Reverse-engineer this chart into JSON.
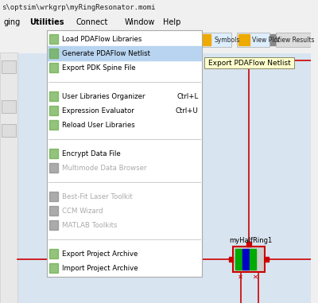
{
  "title_bar": "s\\optsim\\wrkgrp\\myRingResonator.momi",
  "menu_bar": [
    "ging",
    "Utilities",
    "Connect",
    "Window",
    "Help"
  ],
  "bg_color": "#f0f0f0",
  "canvas_bg": "#e8e8e8",
  "menu_bg": "#ffffff",
  "highlight_color": "#b8d4f0",
  "menu_items": [
    {
      "text": "Load PDAFlow Libraries",
      "icon": true,
      "shortcut": "",
      "enabled": true
    },
    {
      "text": "Generate PDAFlow Netlist",
      "icon": true,
      "shortcut": "",
      "enabled": true,
      "highlighted": true
    },
    {
      "text": "Export PDK Spine File",
      "icon": true,
      "shortcut": "",
      "enabled": true
    },
    {
      "text": "",
      "separator": true
    },
    {
      "text": "User Libraries Organizer",
      "icon": true,
      "shortcut": "Ctrl+L",
      "enabled": true
    },
    {
      "text": "Expression Evaluator",
      "icon": true,
      "shortcut": "Ctrl+U",
      "enabled": true
    },
    {
      "text": "Reload User Libraries",
      "icon": true,
      "shortcut": "",
      "enabled": true
    },
    {
      "text": "",
      "separator": true
    },
    {
      "text": "Encrypt Data File",
      "icon": true,
      "shortcut": "",
      "enabled": true
    },
    {
      "text": "Multimode Data Browser",
      "icon": true,
      "shortcut": "",
      "enabled": false
    },
    {
      "text": "",
      "separator": true
    },
    {
      "text": "Best-Fit Laser Toolkit",
      "icon": true,
      "shortcut": "",
      "enabled": false
    },
    {
      "text": "CCM Wizard",
      "icon": true,
      "shortcut": "",
      "enabled": false
    },
    {
      "text": "MATLAB Toolkits",
      "icon": true,
      "shortcut": "",
      "enabled": false
    },
    {
      "text": "",
      "separator": true
    },
    {
      "text": "Export Project Archive",
      "icon": true,
      "shortcut": "",
      "enabled": true
    },
    {
      "text": "Import Project Archive",
      "icon": true,
      "shortcut": "",
      "enabled": true
    }
  ],
  "tooltip_text": "Export PDAFlow Netlist",
  "component_label": "myHalfRing1",
  "wire_color": "#cc0000",
  "component_border_color": "#cc0000",
  "component_bg": "#d0d0d0",
  "component_fill1": "#00aa00",
  "component_fill2": "#0000cc",
  "component_fill3": "#00aa00",
  "toolbar_bg": "#f0f0f0"
}
